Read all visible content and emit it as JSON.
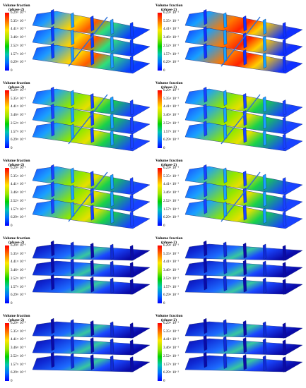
{
  "legend": {
    "title_line1": "Volume fraction",
    "title_line2": "(phase-2)",
    "ticks": [
      "6.29× 10⁻¹",
      "5.35× 10⁻¹",
      "4.41× 10⁻¹",
      "3.46× 10⁻¹",
      "2.52× 10⁻¹",
      "1.57× 10⁻¹",
      "6.29× 10⁻²",
      "0"
    ]
  },
  "panels": [
    {
      "name": "panel-1",
      "palette": "warm"
    },
    {
      "name": "panel-2",
      "palette": "hot"
    },
    {
      "name": "panel-3",
      "palette": "green"
    },
    {
      "name": "panel-4",
      "palette": "green"
    },
    {
      "name": "panel-5",
      "palette": "green"
    },
    {
      "name": "panel-6",
      "palette": "green"
    },
    {
      "name": "panel-7",
      "palette": "blue"
    },
    {
      "name": "panel-8",
      "palette": "blue"
    },
    {
      "name": "panel-9",
      "palette": "blue"
    },
    {
      "name": "panel-10",
      "palette": "blue"
    }
  ]
}
